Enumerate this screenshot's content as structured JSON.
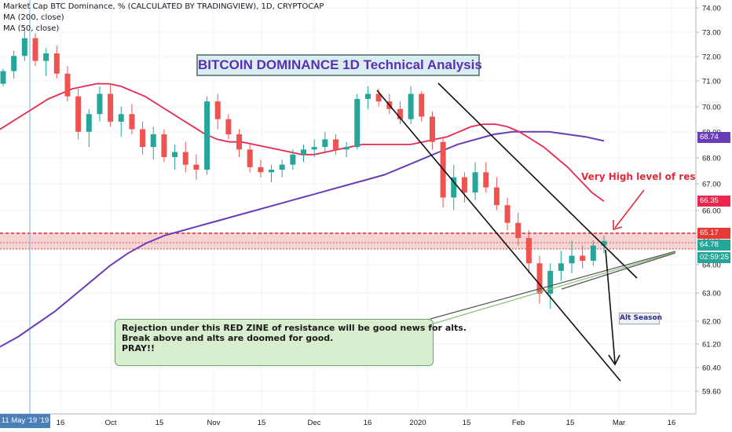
{
  "header": {
    "symbol_line": "Market Cap BTC Dominance, % (CALCULATED BY TRADINGVIEW), 1D, CRYPTOCAP",
    "ma200_line": "MA (200, close)",
    "ma50_line": "MA (50, close)"
  },
  "colors": {
    "up": "#26a69a",
    "down": "#ef5350",
    "ma50": "#e9284e",
    "ma200": "#6a3db8",
    "resistance": "#e53935",
    "title_text": "#5b2fb5"
  },
  "chart_data": {
    "type": "candlestick",
    "title": "BITCOIN DOMINANCE 1D Technical Analysis",
    "y_axis": {
      "ticks": [
        "74.00",
        "73.00",
        "72.00",
        "71.00",
        "70.00",
        "69.00",
        "68.00",
        "67.00",
        "66.00",
        "65.00",
        "64.00",
        "63.00",
        "62.00",
        "61.20",
        "60.40",
        "59.60"
      ],
      "range": [
        59.0,
        74.3
      ]
    },
    "x_axis": {
      "ticks": [
        "16",
        "Oct",
        "15",
        "Nov",
        "15",
        "Dec",
        "16",
        "2020",
        "15",
        "Feb",
        "15",
        "Mar",
        "16"
      ]
    },
    "price_labels": [
      {
        "value": 68.74,
        "text": "68.74",
        "kind": "ma200"
      },
      {
        "value": 66.35,
        "text": "66.35",
        "kind": "ma50"
      },
      {
        "value": 65.17,
        "text": "65.17",
        "kind": "resistance"
      },
      {
        "value": 64.78,
        "text": "64.78",
        "kind": "last"
      },
      {
        "value": 64.25,
        "text": "02:59:25",
        "kind": "countdown"
      }
    ],
    "resistance_zone": {
      "top": 65.17,
      "bottom": 64.6
    },
    "cursor_date_label": "11 May '19  '19",
    "annotations": {
      "resistance_note": "Very High level of resistance",
      "callout_lines": [
        "Rejection under this RED ZINE of resistance will be good news for alts.",
        "Break above and alts are doomed for good.",
        "PRAY!!"
      ],
      "alt_season": "Alt Season"
    },
    "candles_ohlc_sampled": [
      [
        71.0,
        71.6,
        70.9,
        71.5
      ],
      [
        71.5,
        72.3,
        71.2,
        72.1
      ],
      [
        72.1,
        73.2,
        71.9,
        72.8
      ],
      [
        72.8,
        73.0,
        71.7,
        71.9
      ],
      [
        71.9,
        72.4,
        71.3,
        72.2
      ],
      [
        72.2,
        72.5,
        71.2,
        71.4
      ],
      [
        71.4,
        71.7,
        70.3,
        70.5
      ],
      [
        70.5,
        70.8,
        68.8,
        69.1
      ],
      [
        69.1,
        70.0,
        68.5,
        69.8
      ],
      [
        69.8,
        70.9,
        69.5,
        70.6
      ],
      [
        70.6,
        71.0,
        69.3,
        69.5
      ],
      [
        69.5,
        70.1,
        68.9,
        69.8
      ],
      [
        69.8,
        70.2,
        69.0,
        69.2
      ],
      [
        69.2,
        69.5,
        68.2,
        68.5
      ],
      [
        68.5,
        69.3,
        68.0,
        69.0
      ],
      [
        69.0,
        69.2,
        67.9,
        68.1
      ],
      [
        68.1,
        68.6,
        67.6,
        68.3
      ],
      [
        68.3,
        68.7,
        67.5,
        67.8
      ],
      [
        67.8,
        68.2,
        67.2,
        67.6
      ],
      [
        67.6,
        70.5,
        67.4,
        70.3
      ],
      [
        70.3,
        70.6,
        69.2,
        69.6
      ],
      [
        69.6,
        69.8,
        68.8,
        69.0
      ],
      [
        69.0,
        69.2,
        68.1,
        68.4
      ],
      [
        68.4,
        68.6,
        67.5,
        67.7
      ],
      [
        67.7,
        68.0,
        67.3,
        67.5
      ],
      [
        67.5,
        67.8,
        67.1,
        67.6
      ],
      [
        67.6,
        68.0,
        67.3,
        67.8
      ],
      [
        67.8,
        68.4,
        67.6,
        68.2
      ],
      [
        68.2,
        68.6,
        67.9,
        68.4
      ],
      [
        68.4,
        68.8,
        68.1,
        68.5
      ],
      [
        68.5,
        69.1,
        68.3,
        68.8
      ],
      [
        68.8,
        69.0,
        68.2,
        68.4
      ],
      [
        68.4,
        68.7,
        68.1,
        68.5
      ],
      [
        68.5,
        70.6,
        68.4,
        70.4
      ],
      [
        70.4,
        70.9,
        70.0,
        70.6
      ],
      [
        70.6,
        70.8,
        70.1,
        70.3
      ],
      [
        70.3,
        70.6,
        69.8,
        70.0
      ],
      [
        70.0,
        70.3,
        69.4,
        69.6
      ],
      [
        69.6,
        70.9,
        69.4,
        70.6
      ],
      [
        70.6,
        70.7,
        69.5,
        69.7
      ],
      [
        69.7,
        69.9,
        68.4,
        68.7
      ],
      [
        68.7,
        68.9,
        66.1,
        66.5
      ],
      [
        66.5,
        67.8,
        66.0,
        67.3
      ],
      [
        67.3,
        67.5,
        66.3,
        66.7
      ],
      [
        66.7,
        67.9,
        66.4,
        67.5
      ],
      [
        67.5,
        67.9,
        66.7,
        66.9
      ],
      [
        66.9,
        67.3,
        66.0,
        66.2
      ],
      [
        66.2,
        66.5,
        65.2,
        65.5
      ],
      [
        65.5,
        65.9,
        64.6,
        64.9
      ],
      [
        64.9,
        65.2,
        63.5,
        63.9
      ],
      [
        63.9,
        64.2,
        62.3,
        62.7
      ],
      [
        62.7,
        63.9,
        62.1,
        63.6
      ],
      [
        63.6,
        64.4,
        63.2,
        63.9
      ],
      [
        63.9,
        64.8,
        63.5,
        64.2
      ],
      [
        64.2,
        64.6,
        63.7,
        64.0
      ],
      [
        64.0,
        64.8,
        63.8,
        64.6
      ],
      [
        64.6,
        65.0,
        64.3,
        64.78
      ]
    ],
    "ma50_sampled": [
      69.2,
      69.5,
      69.8,
      70.1,
      70.4,
      70.6,
      70.8,
      70.9,
      71.0,
      71.0,
      70.9,
      70.7,
      70.5,
      70.2,
      69.9,
      69.6,
      69.3,
      69.0,
      68.8,
      68.7,
      68.7,
      68.6,
      68.5,
      68.4,
      68.3,
      68.2,
      68.2,
      68.3,
      68.4,
      68.5,
      68.6,
      68.6,
      68.6,
      68.6,
      68.6,
      68.7,
      68.8,
      68.9,
      69.1,
      69.3,
      69.4,
      69.4,
      69.3,
      69.1,
      68.8,
      68.5,
      68.1,
      67.7,
      67.2,
      66.7,
      66.35
    ],
    "ma200_sampled": [
      60.6,
      61.0,
      61.5,
      62.0,
      62.6,
      63.2,
      63.8,
      64.3,
      64.7,
      65.0,
      65.2,
      65.4,
      65.6,
      65.8,
      66.0,
      66.2,
      66.4,
      66.6,
      66.8,
      67.0,
      67.2,
      67.4,
      67.7,
      68.0,
      68.3,
      68.6,
      68.8,
      69.0,
      69.1,
      69.1,
      69.1,
      69.0,
      68.9,
      68.74
    ]
  }
}
